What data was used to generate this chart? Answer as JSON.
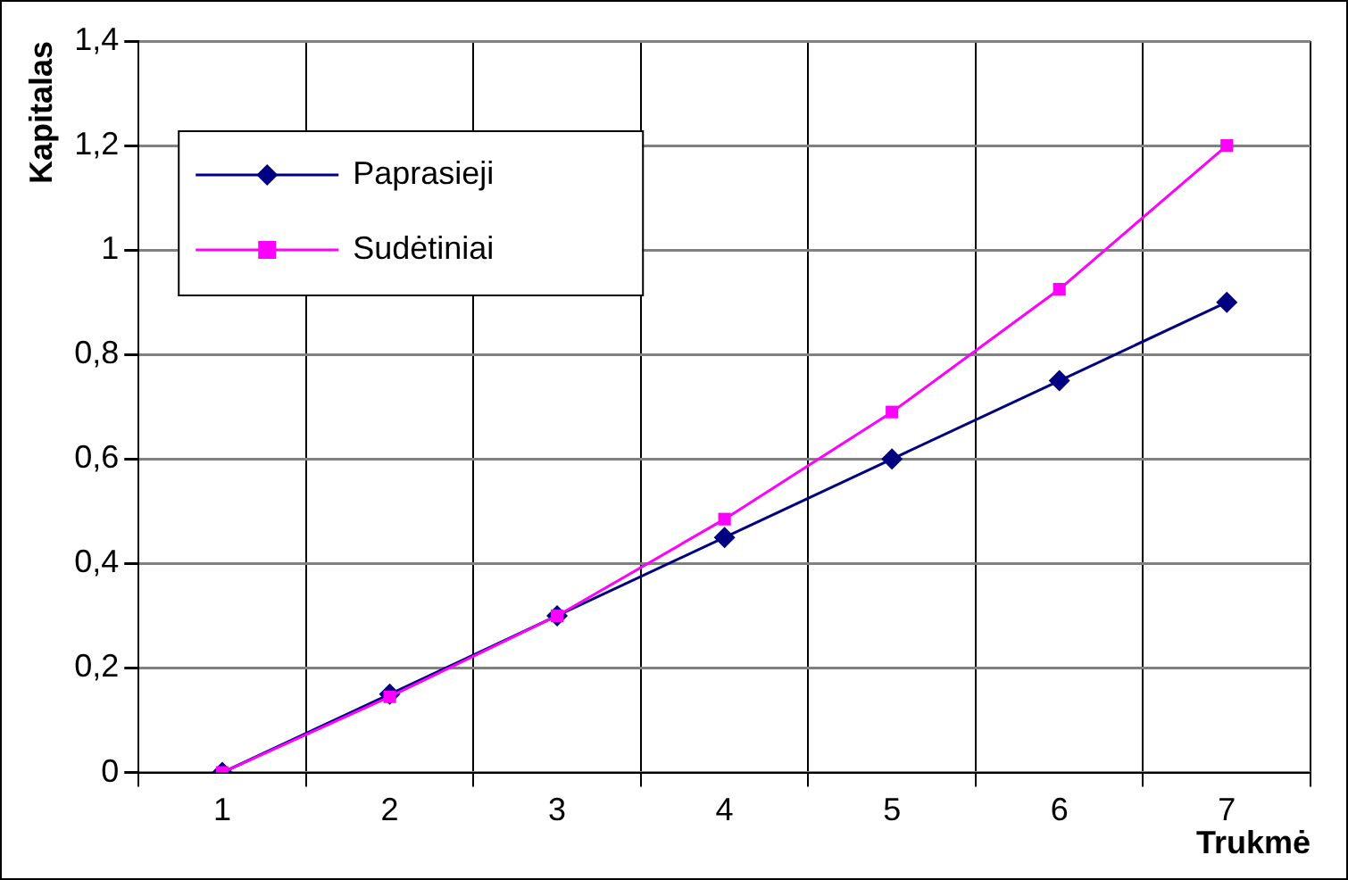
{
  "chart_data": {
    "type": "line",
    "xlabel": "Trukmė",
    "ylabel": "Kapitalas",
    "categories": [
      "1",
      "2",
      "3",
      "4",
      "5",
      "6",
      "7"
    ],
    "series": [
      {
        "name": "Paprasieji",
        "color": "#000080",
        "marker": "diamond",
        "values": [
          0,
          0.15,
          0.3,
          0.45,
          0.6,
          0.75,
          0.9
        ]
      },
      {
        "name": "Sudėtiniai",
        "color": "#ff00ff",
        "marker": "square",
        "values": [
          0,
          0.145,
          0.3,
          0.485,
          0.69,
          0.925,
          1.2
        ]
      }
    ],
    "ylim": [
      0,
      1.4
    ],
    "yticks": [
      0,
      {
        "value": 0.2,
        "label": "0,2"
      },
      {
        "value": 0.4,
        "label": "0,4"
      },
      {
        "value": 0.6,
        "label": "0,6"
      },
      {
        "value": 0.8,
        "label": "0,8"
      },
      1,
      {
        "value": 1.2,
        "label": "1,2"
      },
      {
        "value": 1.4,
        "label": "1,4"
      }
    ],
    "grid": true,
    "legend": "top left"
  }
}
